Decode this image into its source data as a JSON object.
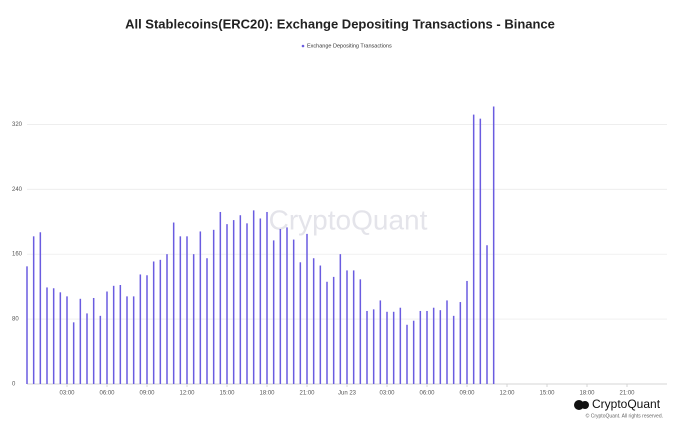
{
  "chart_data": {
    "type": "bar",
    "title": "All Stablecoins(ERC20): Exchange Depositing Transactions - Binance",
    "watermark": "CryptoQuant",
    "brand": "CryptoQuant",
    "copyright": "© CryptoQuant. All rights reserved.",
    "x": [
      0,
      0.5,
      1,
      1.5,
      2,
      2.5,
      3,
      3.5,
      4,
      4.5,
      5,
      5.5,
      6,
      6.5,
      7,
      7.5,
      8,
      8.5,
      9,
      9.5,
      10,
      10.5,
      11,
      11.5,
      12,
      12.5,
      13,
      13.5,
      14,
      14.5,
      15,
      15.5,
      16,
      16.5,
      17,
      17.5,
      18,
      18.5,
      19,
      19.5,
      20,
      20.5,
      21,
      21.5,
      22,
      22.5,
      23,
      23.5,
      24,
      24.5,
      25,
      25.5,
      26,
      26.5,
      27,
      27.5,
      28,
      28.5,
      29,
      29.5,
      30,
      30.5,
      31,
      31.5,
      32,
      32.5,
      33,
      33.5,
      34,
      34.5,
      35
    ],
    "series": [
      {
        "name": "Exchange Depositing Transactions",
        "color": "#6a5ce0",
        "values": [
          145,
          182,
          187,
          119,
          118,
          113,
          108,
          76,
          105,
          87,
          106,
          84,
          114,
          121,
          122,
          108,
          108,
          135,
          134,
          151,
          153,
          160,
          199,
          182,
          182,
          160,
          188,
          155,
          190,
          212,
          197,
          202,
          208,
          198,
          214,
          204,
          212,
          177,
          191,
          193,
          178,
          150,
          185,
          155,
          146,
          126,
          132,
          160,
          140,
          140,
          129,
          90,
          92,
          103,
          89,
          89,
          94,
          73,
          78,
          90,
          90,
          94,
          91,
          103,
          84,
          101,
          127,
          332,
          327,
          171,
          342
        ]
      }
    ],
    "xlim": [
      0,
      48
    ],
    "xticks": [
      {
        "value": 3,
        "label": "03:00"
      },
      {
        "value": 6,
        "label": "06:00"
      },
      {
        "value": 9,
        "label": "09:00"
      },
      {
        "value": 12,
        "label": "12:00"
      },
      {
        "value": 15,
        "label": "15:00"
      },
      {
        "value": 18,
        "label": "18:00"
      },
      {
        "value": 21,
        "label": "21:00"
      },
      {
        "value": 24,
        "label": "Jun 23"
      },
      {
        "value": 27,
        "label": "03:00"
      },
      {
        "value": 30,
        "label": "06:00"
      },
      {
        "value": 33,
        "label": "09:00"
      },
      {
        "value": 36,
        "label": "12:00"
      },
      {
        "value": 39,
        "label": "15:00"
      },
      {
        "value": 42,
        "label": "18:00"
      },
      {
        "value": 45,
        "label": "21:00"
      }
    ],
    "ylim": [
      0,
      350
    ],
    "yticks": [
      0,
      80,
      160,
      240,
      320
    ],
    "grid": true
  }
}
